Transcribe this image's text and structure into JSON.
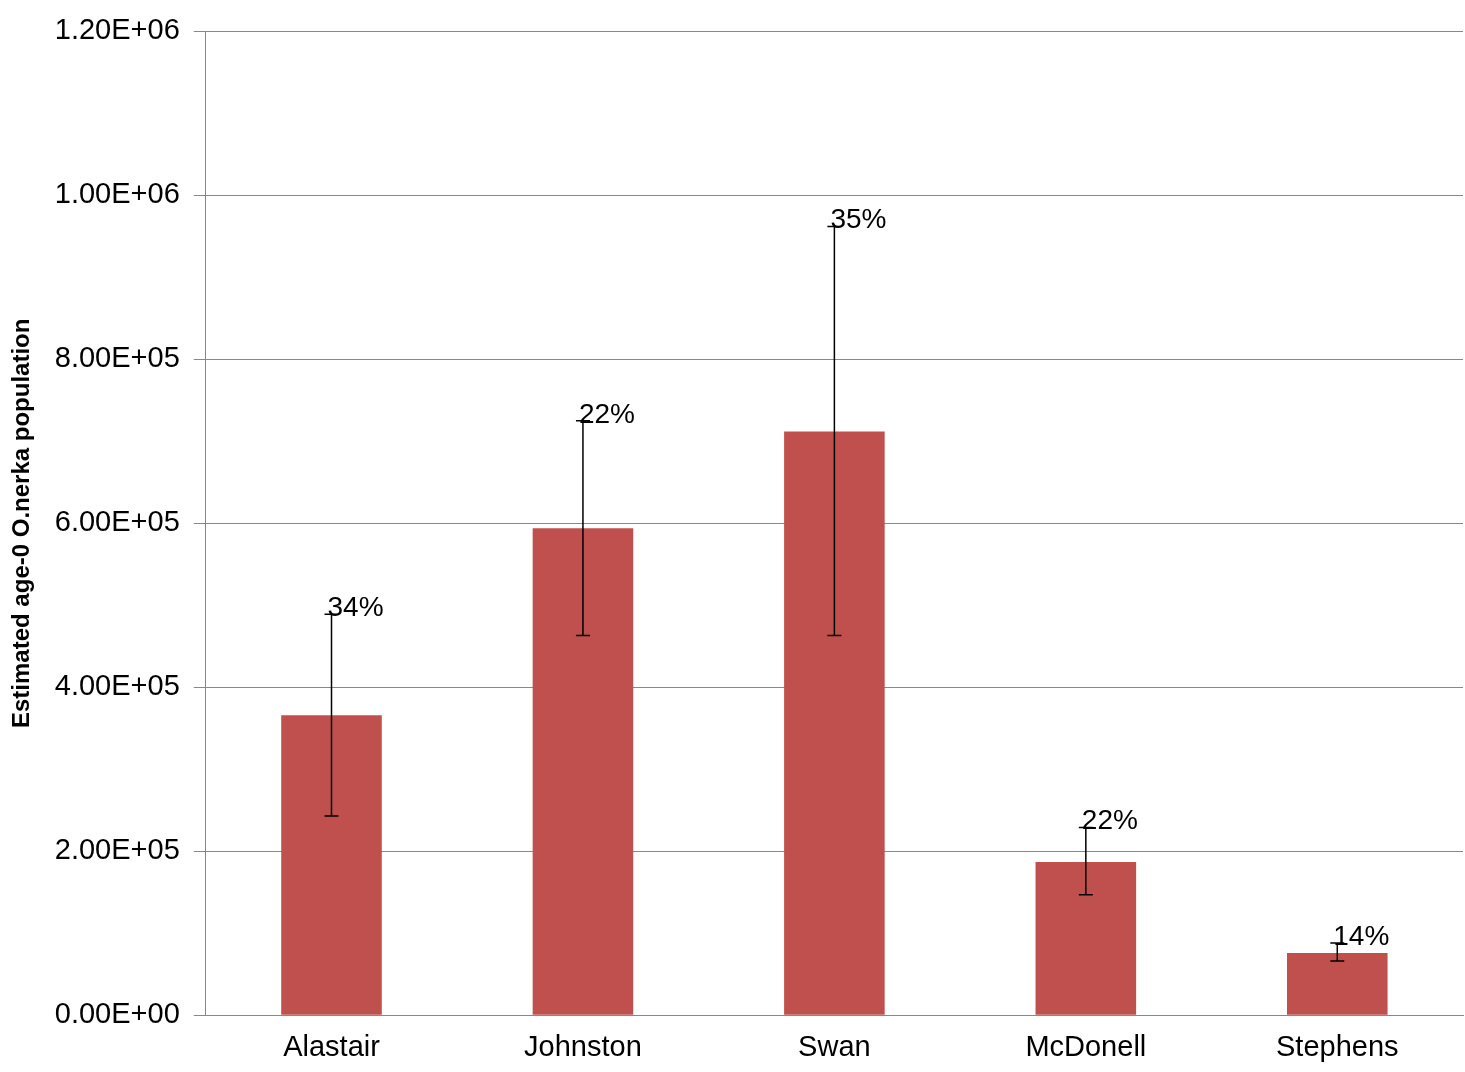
{
  "chart_data": {
    "type": "bar",
    "ylabel": "Estimated age-0 O.nerka population",
    "categories": [
      "Alastair",
      "Johnston",
      "Swan",
      "McDonell",
      "Stephens"
    ],
    "values": [
      366000,
      594000,
      712000,
      187000,
      76000
    ],
    "errors": [
      [
        243000,
        489000
      ],
      [
        463000,
        725000
      ],
      [
        463000,
        962000
      ],
      [
        147000,
        229000
      ],
      [
        66000,
        88000
      ]
    ],
    "color": "#c0504d",
    "ylim": [
      0,
      1200000
    ],
    "yticks": [
      {
        "value": 0,
        "label": "0.00E+00"
      },
      {
        "value": 200000,
        "label": "2.00E+05"
      },
      {
        "value": 400000,
        "label": "4.00E+05"
      },
      {
        "value": 600000,
        "label": "6.00E+05"
      },
      {
        "value": 800000,
        "label": "8.00E+05"
      },
      {
        "value": 1000000,
        "label": "1.00E+06"
      },
      {
        "value": 1200000,
        "label": "1.20E+06"
      }
    ],
    "grid": "y",
    "legend": false,
    "annotations": [
      {
        "text": "34%",
        "x": "Alastair",
        "y": 489000
      },
      {
        "text": "22%",
        "x": "Johnston",
        "y": 725000
      },
      {
        "text": "35%",
        "x": "Swan",
        "y": 962000
      },
      {
        "text": "22%",
        "x": "McDonell",
        "y": 229000
      },
      {
        "text": "14%",
        "x": "Stephens",
        "y": 88000
      }
    ]
  }
}
